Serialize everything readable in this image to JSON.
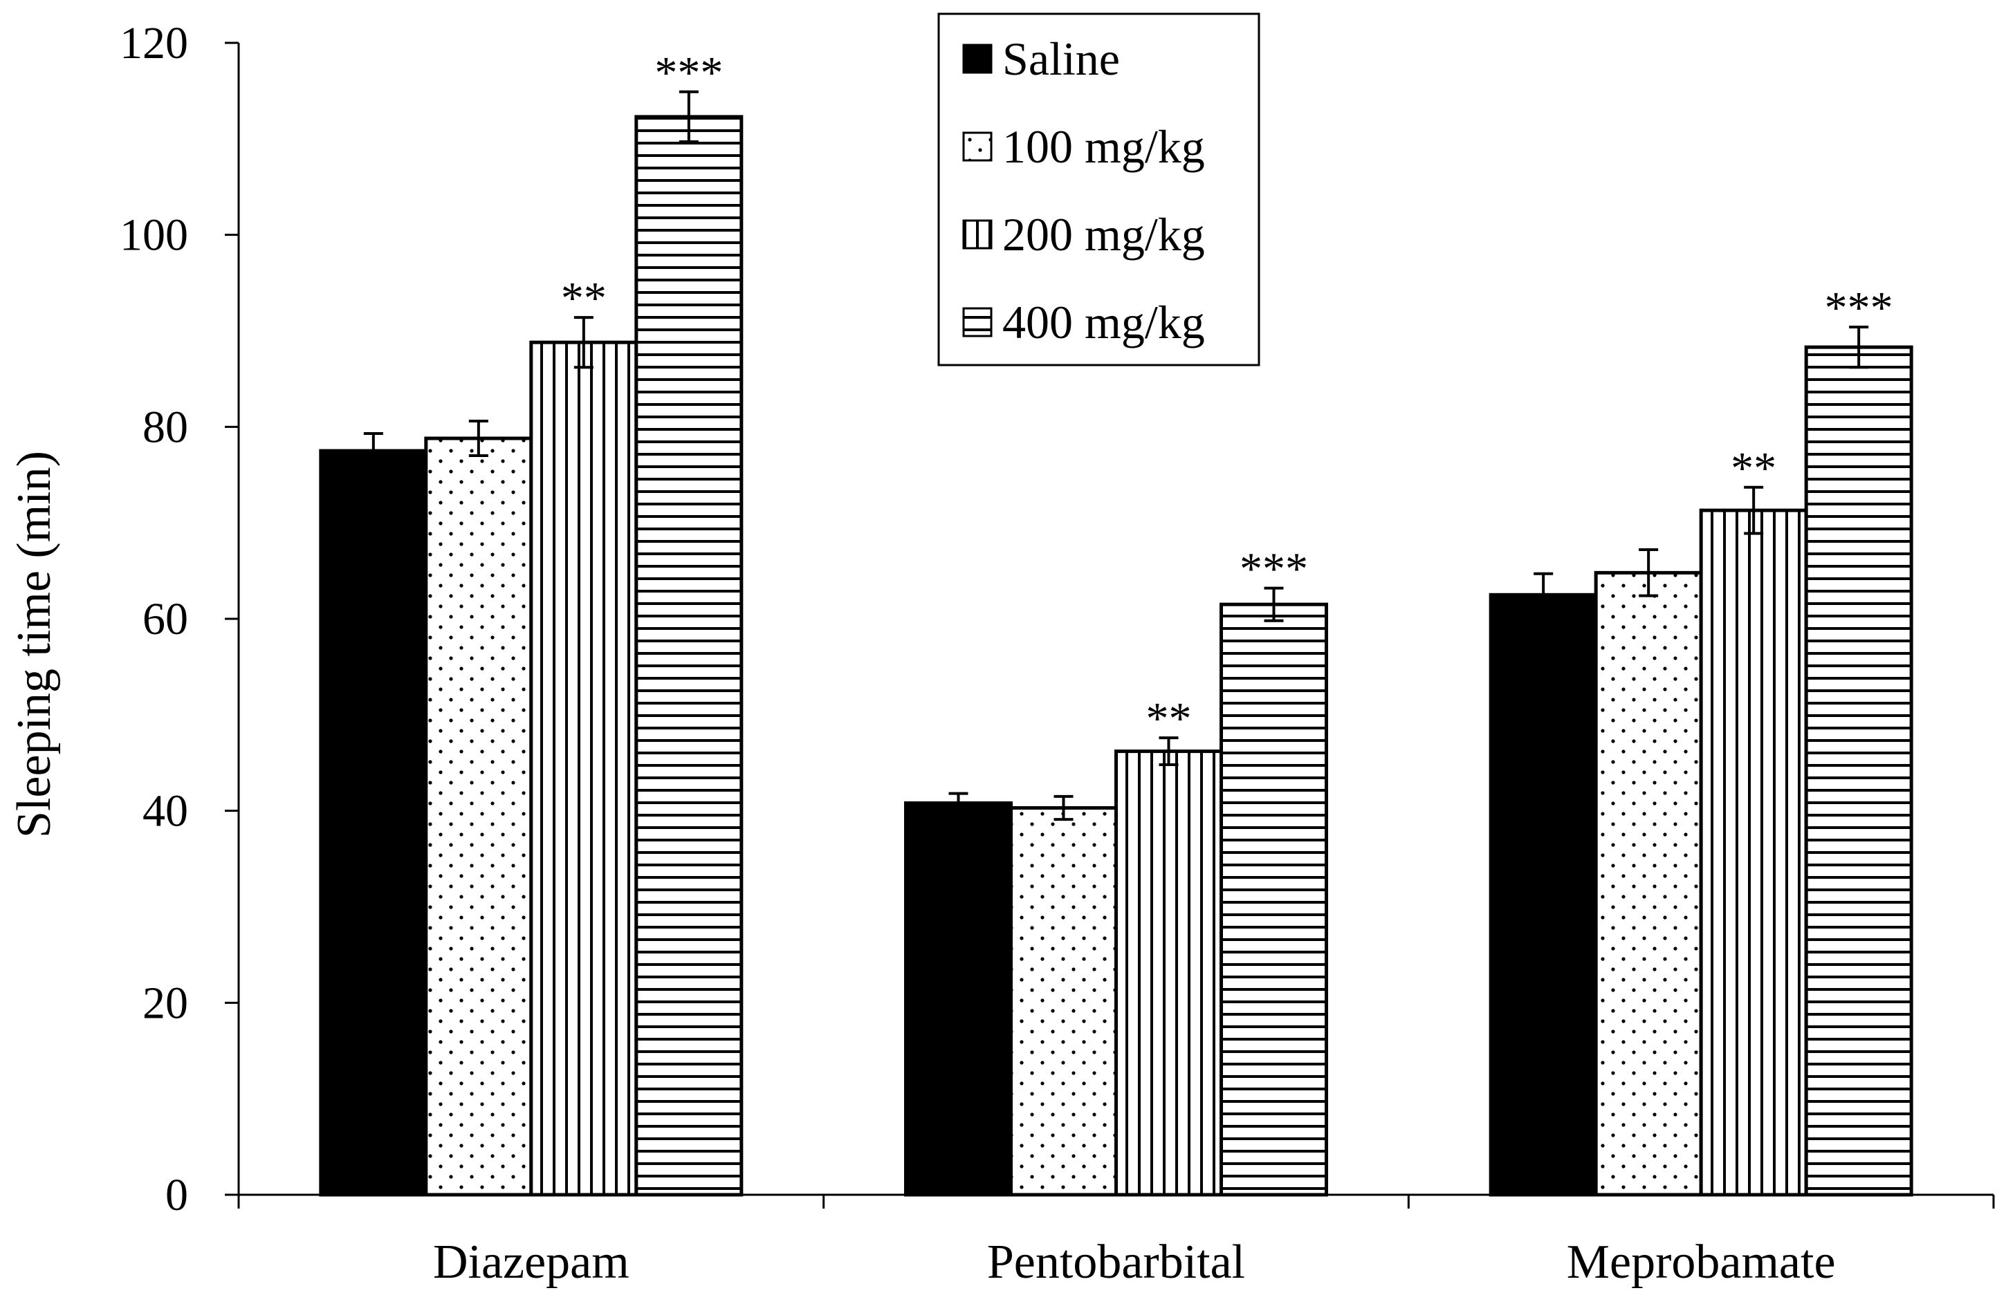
{
  "chart_data": {
    "type": "bar",
    "title": "",
    "xlabel": "",
    "ylabel": "Sleeping time (min)",
    "ylim": [
      0,
      120
    ],
    "yticks": [
      0,
      20,
      40,
      60,
      80,
      100,
      120
    ],
    "grid": false,
    "legend_position": "top-center",
    "categories": [
      "Diazepam",
      "Pentobarbital",
      "Meprobamate"
    ],
    "series": [
      {
        "name": "Saline",
        "pattern": "solid",
        "values": [
          77.5,
          40.8,
          62.5
        ],
        "errors": [
          1.8,
          1.0,
          2.2
        ],
        "significance": [
          "",
          "",
          ""
        ]
      },
      {
        "name": "100 mg/kg",
        "pattern": "dots",
        "values": [
          78.8,
          40.3,
          64.8
        ],
        "errors": [
          1.8,
          1.2,
          2.4
        ],
        "significance": [
          "",
          "",
          ""
        ]
      },
      {
        "name": "200 mg/kg",
        "pattern": "vertical",
        "values": [
          88.8,
          46.2,
          71.3
        ],
        "errors": [
          2.6,
          1.4,
          2.4
        ],
        "significance": [
          "**",
          "**",
          "**"
        ]
      },
      {
        "name": "400 mg/kg",
        "pattern": "horizontal",
        "values": [
          112.3,
          61.5,
          88.3
        ],
        "errors": [
          2.6,
          1.7,
          2.1
        ],
        "significance": [
          "***",
          "***",
          "***"
        ]
      }
    ],
    "colors": {
      "axis": "#000000",
      "fill": "#000000",
      "background": "#ffffff"
    }
  }
}
